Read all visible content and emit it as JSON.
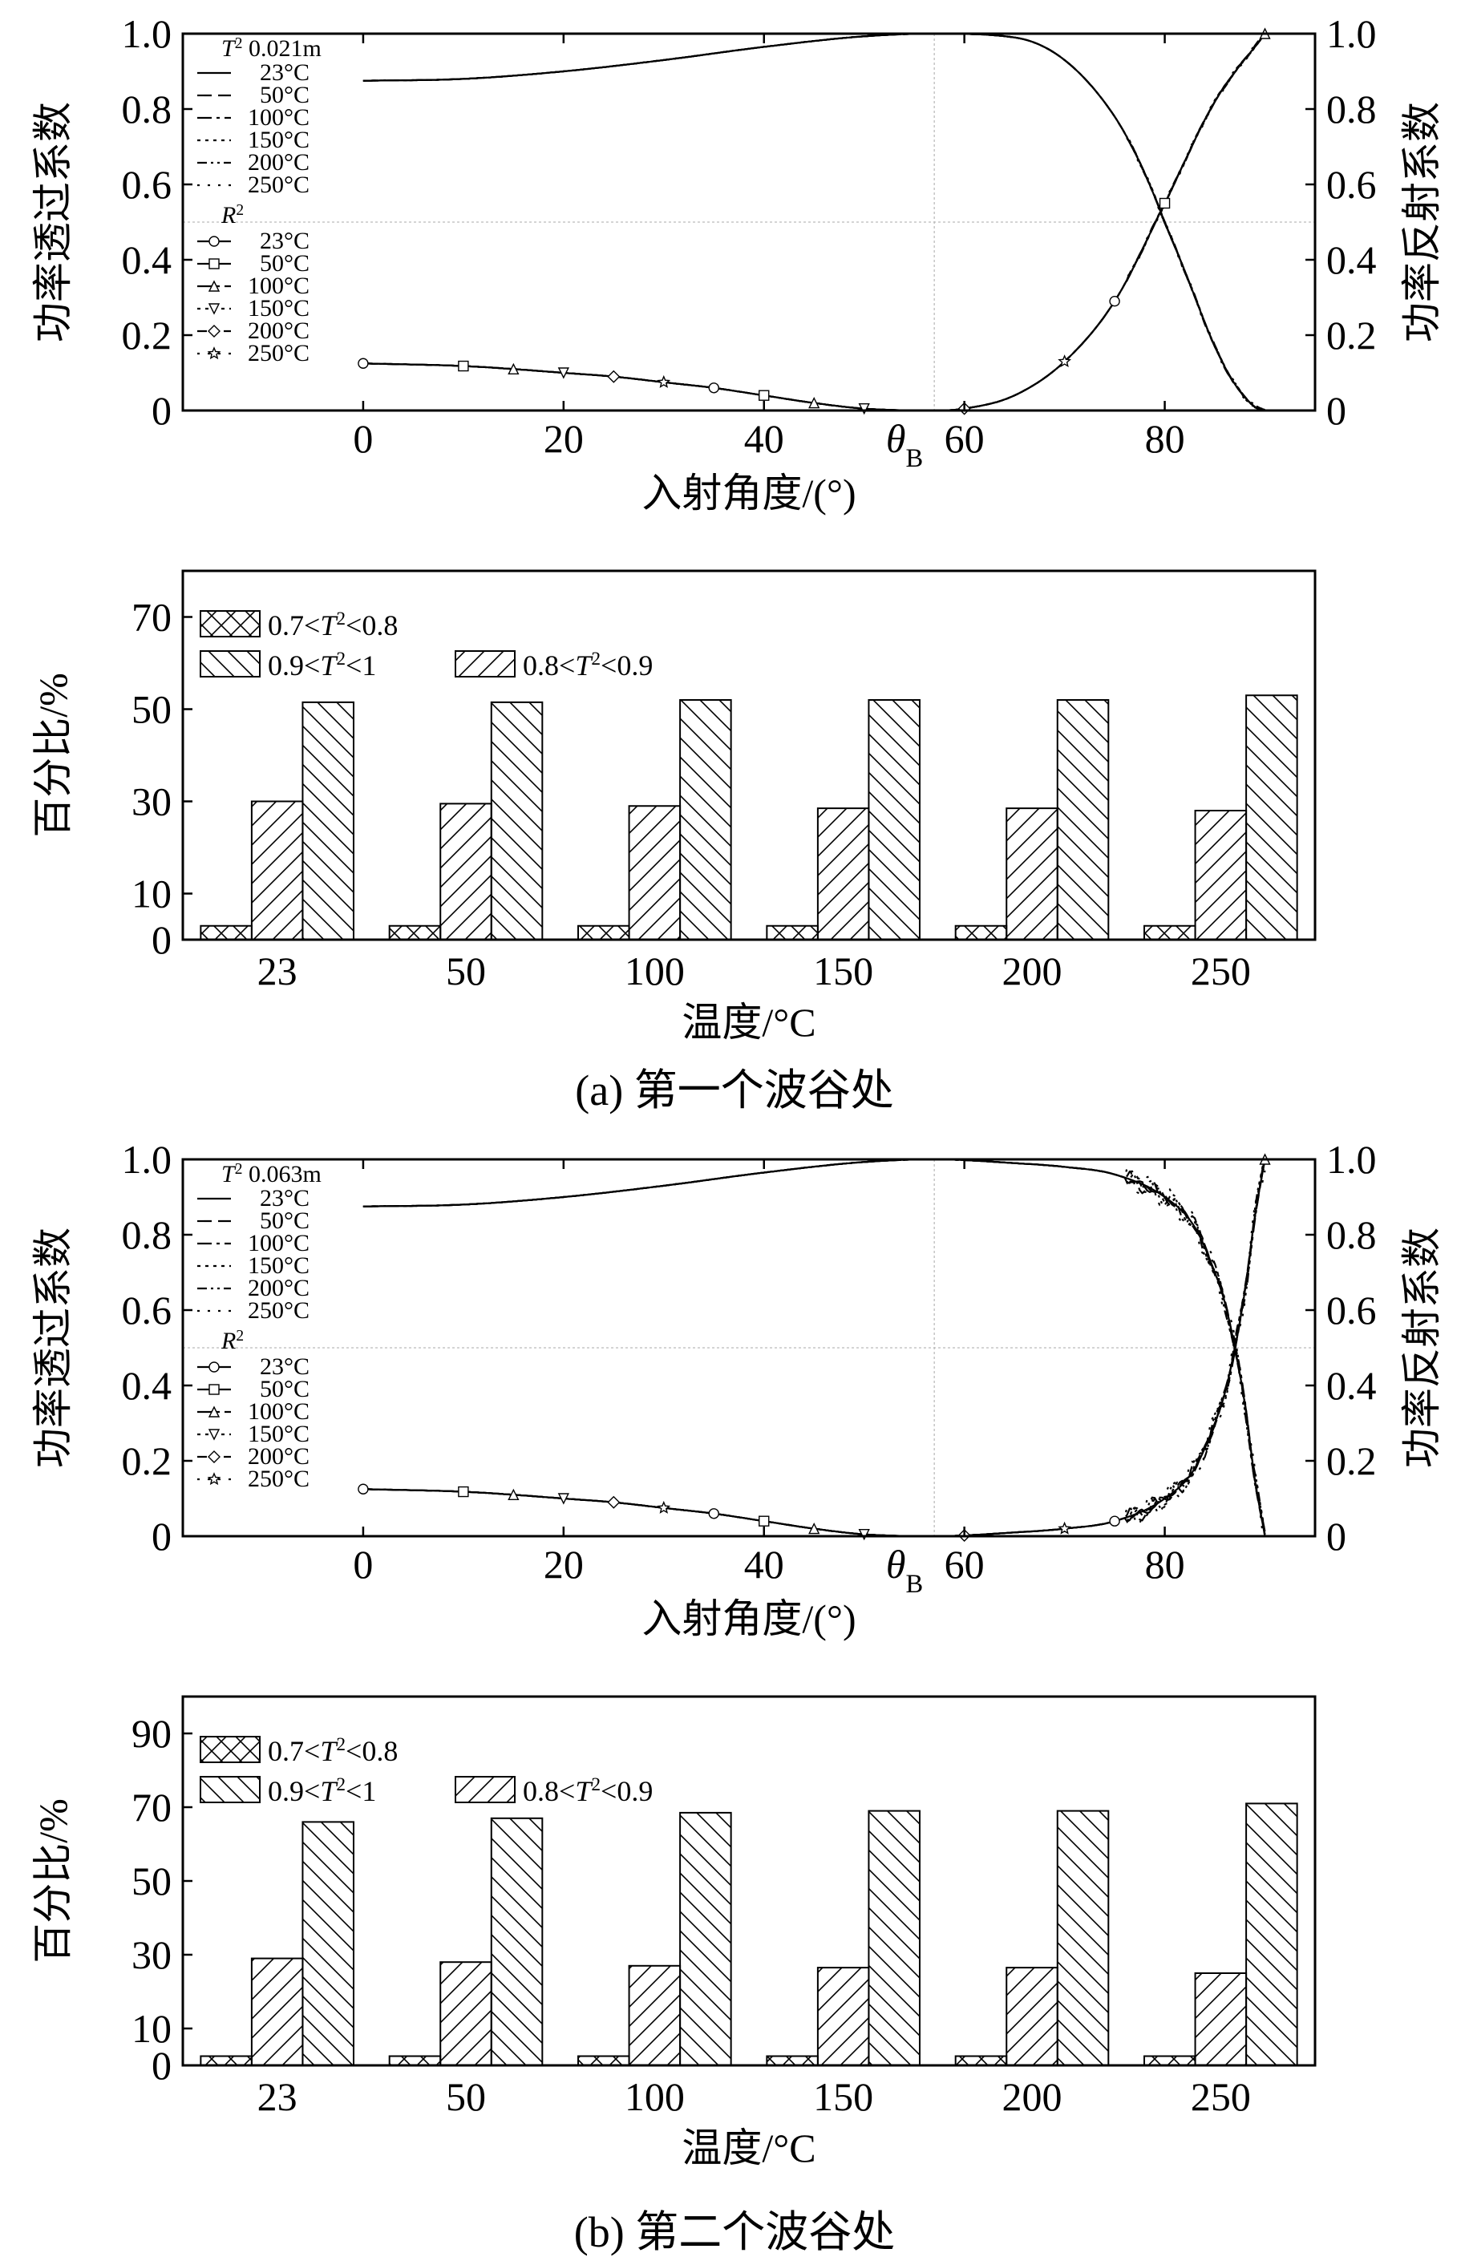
{
  "figure": {
    "caption_a": "(a) 第一个波谷处",
    "caption_b": "(b) 第二个波谷处"
  },
  "chart_data": [
    {
      "type": "line",
      "panel": "a-top",
      "xlabel": "入射角度/(°)",
      "ylabel_left": "功率透过系数",
      "ylabel_right": "功率反射系数",
      "xlim": [
        -18,
        95
      ],
      "ylim": [
        0,
        1.0
      ],
      "xticks": [
        "0",
        "20",
        "40",
        "60",
        "80"
      ],
      "yticks": [
        "0",
        "0.2",
        "0.4",
        "0.6",
        "0.8",
        "1.0"
      ],
      "brewster_label": "θ",
      "brewster_sub": "B",
      "brewster_angle": 57,
      "reference_lines": {
        "x": 57,
        "y": 0.5
      },
      "legend": {
        "t_title": "T²",
        "thickness": "0.021m",
        "t_entries": [
          "23°C",
          "50°C",
          "100°C",
          "150°C",
          "200°C",
          "250°C"
        ],
        "r_title": "R²",
        "r_entries": [
          "23°C",
          "50°C",
          "100°C",
          "150°C",
          "200°C",
          "250°C"
        ]
      },
      "series": [
        {
          "name": "T² 23°C",
          "x": [
            0,
            10,
            20,
            30,
            40,
            50,
            57,
            65,
            70,
            75,
            78,
            80,
            82,
            85,
            87,
            89,
            90
          ],
          "values": [
            0.875,
            0.88,
            0.9,
            0.93,
            0.965,
            0.993,
            1.0,
            0.99,
            0.93,
            0.78,
            0.63,
            0.5,
            0.37,
            0.17,
            0.07,
            0.01,
            0.0
          ]
        },
        {
          "name": "R² 23°C",
          "x": [
            0,
            10,
            15,
            20,
            25,
            30,
            35,
            40,
            45,
            50,
            57,
            60,
            65,
            70,
            75,
            80,
            85,
            90
          ],
          "values": [
            0.125,
            0.118,
            0.11,
            0.1,
            0.09,
            0.075,
            0.06,
            0.04,
            0.02,
            0.005,
            0.0,
            0.005,
            0.04,
            0.13,
            0.29,
            0.55,
            0.82,
            1.0
          ]
        }
      ]
    },
    {
      "type": "bar",
      "panel": "a-bottom",
      "xlabel": "温度/°C",
      "ylabel": "百分比/%",
      "ylim": [
        0,
        80
      ],
      "yticks": [
        "0",
        "10",
        "30",
        "50",
        "70"
      ],
      "categories": [
        "23",
        "50",
        "100",
        "150",
        "200",
        "250"
      ],
      "series": [
        {
          "name": "0.7<T²<0.8",
          "values": [
            3,
            3,
            3,
            3,
            3,
            3
          ]
        },
        {
          "name": "0.8<T²<0.9",
          "values": [
            30,
            29.5,
            29,
            28.5,
            28.5,
            28
          ]
        },
        {
          "name": "0.9<T²<1",
          "values": [
            51.5,
            51.5,
            52,
            52,
            52,
            53
          ]
        }
      ],
      "legend_labels": {
        "l1_pre": "0.7<",
        "l1_post": "<0.8",
        "l2_pre": "0.9<",
        "l2_post": "<1",
        "l3_pre": "0.8<",
        "l3_post": "<0.9",
        "sym": "T",
        "sup": "2"
      }
    },
    {
      "type": "line",
      "panel": "b-top",
      "xlabel": "入射角度/(°)",
      "ylabel_left": "功率透过系数",
      "ylabel_right": "功率反射系数",
      "xlim": [
        -18,
        95
      ],
      "ylim": [
        0,
        1.0
      ],
      "xticks": [
        "0",
        "20",
        "40",
        "60",
        "80"
      ],
      "yticks": [
        "0",
        "0.2",
        "0.4",
        "0.6",
        "0.8",
        "1.0"
      ],
      "brewster_label": "θ",
      "brewster_sub": "B",
      "brewster_angle": 57,
      "reference_lines": {
        "x": 57,
        "y": 0.5
      },
      "legend": {
        "t_title": "T²",
        "thickness": "0.063m",
        "t_entries": [
          "23°C",
          "50°C",
          "100°C",
          "150°C",
          "200°C",
          "250°C"
        ],
        "r_title": "R²",
        "r_entries": [
          "23°C",
          "50°C",
          "100°C",
          "150°C",
          "200°C",
          "250°C"
        ]
      },
      "series": [
        {
          "name": "T² 23°C",
          "x": [
            0,
            10,
            20,
            30,
            40,
            50,
            57,
            65,
            70,
            75,
            80,
            83,
            85,
            86,
            87,
            88,
            89,
            90
          ],
          "values": [
            0.875,
            0.88,
            0.9,
            0.93,
            0.965,
            0.993,
            1.0,
            0.99,
            0.98,
            0.96,
            0.9,
            0.82,
            0.7,
            0.62,
            0.5,
            0.35,
            0.15,
            0.0
          ]
        },
        {
          "name": "R² 23°C",
          "x": [
            0,
            10,
            15,
            20,
            25,
            30,
            35,
            40,
            45,
            50,
            57,
            65,
            70,
            75,
            80,
            83,
            85,
            86,
            87,
            88,
            89,
            90
          ],
          "values": [
            0.125,
            0.118,
            0.11,
            0.1,
            0.09,
            0.075,
            0.06,
            0.04,
            0.02,
            0.005,
            0.0,
            0.01,
            0.02,
            0.04,
            0.1,
            0.18,
            0.3,
            0.38,
            0.5,
            0.65,
            0.85,
            1.0
          ]
        }
      ]
    },
    {
      "type": "bar",
      "panel": "b-bottom",
      "xlabel": "温度/°C",
      "ylabel": "百分比/%",
      "ylim": [
        0,
        100
      ],
      "yticks": [
        "0",
        "10",
        "30",
        "50",
        "70",
        "90"
      ],
      "categories": [
        "23",
        "50",
        "100",
        "150",
        "200",
        "250"
      ],
      "series": [
        {
          "name": "0.7<T²<0.8",
          "values": [
            2.5,
            2.5,
            2.5,
            2.5,
            2.5,
            2.5
          ]
        },
        {
          "name": "0.8<T²<0.9",
          "values": [
            29,
            28,
            27,
            26.5,
            26.5,
            25
          ]
        },
        {
          "name": "0.9<T²<1",
          "values": [
            66,
            67,
            68.5,
            69,
            69,
            71
          ]
        }
      ],
      "legend_labels": {
        "l1_pre": "0.7<",
        "l1_post": "<0.8",
        "l2_pre": "0.9<",
        "l2_post": "<1",
        "l3_pre": "0.8<",
        "l3_post": "<0.9",
        "sym": "T",
        "sup": "2"
      }
    }
  ]
}
